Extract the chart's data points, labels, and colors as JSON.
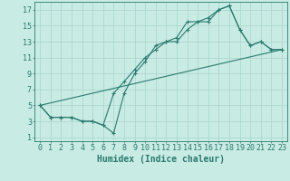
{
  "background_color": "#c8ebe3",
  "grid_color": "#a8d5cc",
  "line_color": "#2a7b6f",
  "xlabel": "Humidex (Indice chaleur)",
  "xlim": [
    -0.5,
    23.5
  ],
  "ylim": [
    0.5,
    18
  ],
  "xticks": [
    0,
    1,
    2,
    3,
    4,
    5,
    6,
    7,
    8,
    9,
    10,
    11,
    12,
    13,
    14,
    15,
    16,
    17,
    18,
    19,
    20,
    21,
    22,
    23
  ],
  "yticks": [
    1,
    3,
    5,
    7,
    9,
    11,
    13,
    15,
    17
  ],
  "line1_x": [
    0,
    1,
    2,
    3,
    4,
    5,
    6,
    7,
    8,
    9,
    10,
    11,
    12,
    13,
    14,
    15,
    16,
    17,
    18,
    19,
    20,
    21,
    22,
    23
  ],
  "line1_y": [
    5,
    3.5,
    3.5,
    3.5,
    3,
    3,
    2.5,
    1.5,
    6.5,
    9,
    10.5,
    12.5,
    13,
    13.5,
    15.5,
    15.5,
    15.5,
    17,
    17.5,
    14.5,
    12.5,
    13,
    12,
    12
  ],
  "line2_x": [
    0,
    1,
    2,
    3,
    4,
    5,
    6,
    7,
    8,
    9,
    10,
    11,
    12,
    13,
    14,
    15,
    16,
    17,
    18,
    19,
    20,
    21,
    22,
    23
  ],
  "line2_y": [
    5,
    3.5,
    3.5,
    3.5,
    3,
    3,
    2.5,
    6.5,
    8,
    9.5,
    11,
    12,
    13,
    13,
    14.5,
    15.5,
    16,
    17,
    17.5,
    14.5,
    12.5,
    13,
    12,
    12
  ],
  "line3_x": [
    0,
    23
  ],
  "line3_y": [
    5,
    12
  ],
  "xlabel_fontsize": 7,
  "tick_fontsize": 6
}
